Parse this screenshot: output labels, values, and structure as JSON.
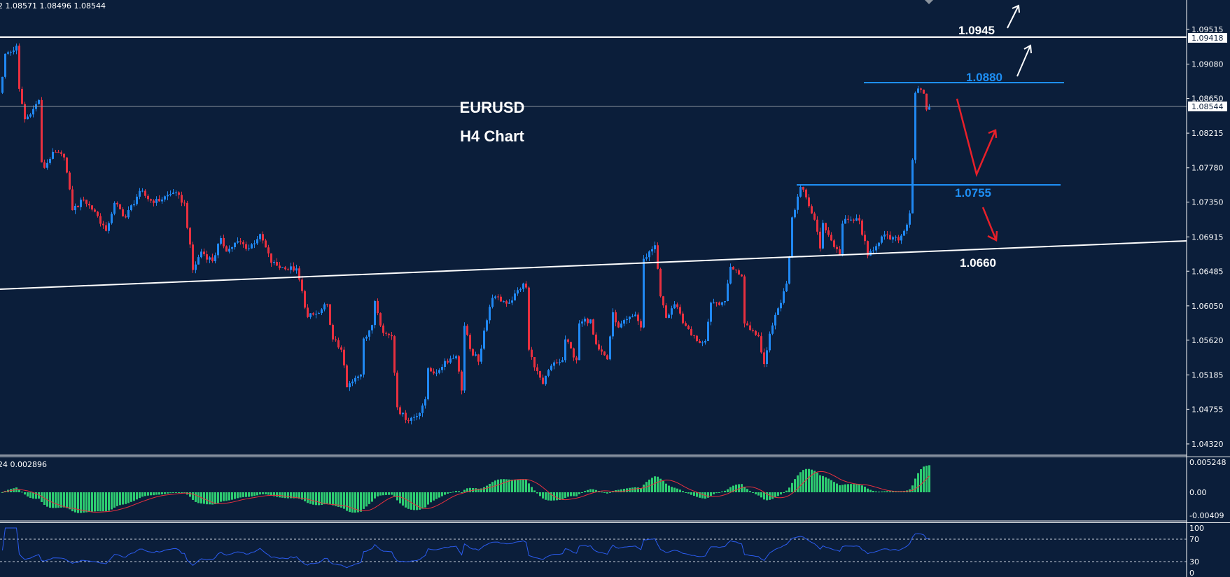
{
  "header": {
    "ohlc_text": "2 1.08571 1.08496 1.08544",
    "macd_text": "24 0.002896"
  },
  "overlay": {
    "symbol": "EURUSD",
    "timeframe": "H4 Chart"
  },
  "annotations": {
    "resistance_high": "1.0945",
    "resistance": "1.0880",
    "support": "1.0755",
    "trendline_support": "1.0660"
  },
  "price_axis": {
    "ticks": [
      "1.09515",
      "1.09080",
      "1.08650",
      "1.08215",
      "1.07780",
      "1.07350",
      "1.06915",
      "1.06485",
      "1.06050",
      "1.05620",
      "1.05185",
      "1.04755",
      "1.04320"
    ],
    "line_label": "1.09418",
    "current_price": "1.08544"
  },
  "macd_axis": {
    "top": "0.005248",
    "zero": "0.00",
    "bottom": "-0.00409"
  },
  "rsi_axis": {
    "t100": "100",
    "t70": "70",
    "t30": "30",
    "t0": "0"
  },
  "colors": {
    "background": "#0b1e3a",
    "bull": "#2088f2",
    "bear": "#e8303f",
    "macd_hist": "#2ecc71",
    "macd_signal": "#e8303f",
    "rsi": "#2b5cf0",
    "level_blue": "#1e8ff5",
    "arrow_red": "#e8202a"
  },
  "chart_data": {
    "type": "candlestick",
    "title": "EURUSD H4 Chart",
    "ylim": [
      1.0432,
      1.0985
    ],
    "candle_count": 332,
    "close_waypoints": [
      [
        0,
        1.0892
      ],
      [
        1,
        1.0921
      ],
      [
        4,
        1.0925
      ],
      [
        5,
        1.0931
      ],
      [
        6,
        1.0877
      ],
      [
        8,
        1.0839
      ],
      [
        10,
        1.0845
      ],
      [
        13,
        1.0863
      ],
      [
        14,
        1.0785
      ],
      [
        15,
        1.0778
      ],
      [
        18,
        1.0798
      ],
      [
        22,
        1.0791
      ],
      [
        24,
        1.0751
      ],
      [
        25,
        1.0725
      ],
      [
        29,
        1.0738
      ],
      [
        33,
        1.0723
      ],
      [
        37,
        1.0699
      ],
      [
        40,
        1.0734
      ],
      [
        44,
        1.0716
      ],
      [
        49,
        1.0749
      ],
      [
        54,
        1.0734
      ],
      [
        61,
        1.0747
      ],
      [
        65,
        1.0734
      ],
      [
        68,
        1.065
      ],
      [
        71,
        1.0673
      ],
      [
        75,
        1.0661
      ],
      [
        78,
        1.069
      ],
      [
        80,
        1.0673
      ],
      [
        84,
        1.0686
      ],
      [
        88,
        1.0677
      ],
      [
        92,
        1.0695
      ],
      [
        96,
        1.0659
      ],
      [
        101,
        1.0651
      ],
      [
        105,
        1.0652
      ],
      [
        109,
        1.0591
      ],
      [
        113,
        1.0596
      ],
      [
        116,
        1.0607
      ],
      [
        118,
        1.0563
      ],
      [
        121,
        1.055
      ],
      [
        123,
        1.0503
      ],
      [
        128,
        1.0519
      ],
      [
        129,
        1.0564
      ],
      [
        132,
        1.0581
      ],
      [
        133,
        1.0611
      ],
      [
        136,
        1.0571
      ],
      [
        139,
        1.0567
      ],
      [
        141,
        1.0478
      ],
      [
        144,
        1.0462
      ],
      [
        148,
        1.0467
      ],
      [
        151,
        1.0488
      ],
      [
        152,
        1.0527
      ],
      [
        155,
        1.0521
      ],
      [
        158,
        1.0536
      ],
      [
        162,
        1.0542
      ],
      [
        164,
        1.0499
      ],
      [
        165,
        1.058
      ],
      [
        167,
        1.0551
      ],
      [
        170,
        1.0535
      ],
      [
        172,
        1.0574
      ],
      [
        175,
        1.0615
      ],
      [
        181,
        1.0609
      ],
      [
        186,
        1.0633
      ],
      [
        187,
        1.0628
      ],
      [
        188,
        1.055
      ],
      [
        190,
        1.0528
      ],
      [
        193,
        1.0507
      ],
      [
        196,
        1.053
      ],
      [
        200,
        1.0537
      ],
      [
        201,
        1.0563
      ],
      [
        205,
        1.0537
      ],
      [
        206,
        1.0583
      ],
      [
        210,
        1.0588
      ],
      [
        212,
        1.0557
      ],
      [
        216,
        1.0538
      ],
      [
        218,
        1.0597
      ],
      [
        220,
        1.0578
      ],
      [
        226,
        1.0594
      ],
      [
        228,
        1.0578
      ],
      [
        229,
        1.0664
      ],
      [
        233,
        1.0681
      ],
      [
        235,
        1.0617
      ],
      [
        237,
        1.059
      ],
      [
        240,
        1.0607
      ],
      [
        244,
        1.058
      ],
      [
        248,
        1.0561
      ],
      [
        251,
        1.0561
      ],
      [
        253,
        1.0609
      ],
      [
        258,
        1.0611
      ],
      [
        260,
        1.0654
      ],
      [
        264,
        1.0642
      ],
      [
        265,
        1.0583
      ],
      [
        270,
        1.0567
      ],
      [
        272,
        1.0532
      ],
      [
        274,
        1.057
      ],
      [
        277,
        1.0602
      ],
      [
        280,
        1.0633
      ],
      [
        281,
        1.0666
      ],
      [
        282,
        1.0716
      ],
      [
        285,
        1.0754
      ],
      [
        287,
        1.0741
      ],
      [
        290,
        1.0713
      ],
      [
        292,
        1.0677
      ],
      [
        293,
        1.0709
      ],
      [
        296,
        1.0687
      ],
      [
        299,
        1.0668
      ],
      [
        300,
        1.0708
      ],
      [
        302,
        1.0713
      ],
      [
        306,
        1.0712
      ],
      [
        309,
        1.0668
      ],
      [
        314,
        1.0692
      ],
      [
        320,
        1.0687
      ],
      [
        322,
        1.0699
      ],
      [
        324,
        1.0721
      ],
      [
        325,
        1.0788
      ],
      [
        326,
        1.0872
      ],
      [
        328,
        1.0876
      ],
      [
        329,
        1.0871
      ],
      [
        330,
        1.0851
      ],
      [
        331,
        1.0854
      ]
    ],
    "horizontal_lines": [
      1.09418,
      1.08544
    ],
    "trendline": {
      "start_price": 1.0626,
      "end_price": 1.0686
    },
    "indicators": [
      {
        "name": "MACD",
        "fast": 12,
        "slow": 26,
        "signal": 9,
        "last_signal": 0.002896,
        "range": [
          -0.00409,
          0.005248
        ]
      },
      {
        "name": "RSI",
        "period": 14,
        "levels": [
          30,
          70
        ],
        "range": [
          0,
          100
        ]
      }
    ]
  }
}
